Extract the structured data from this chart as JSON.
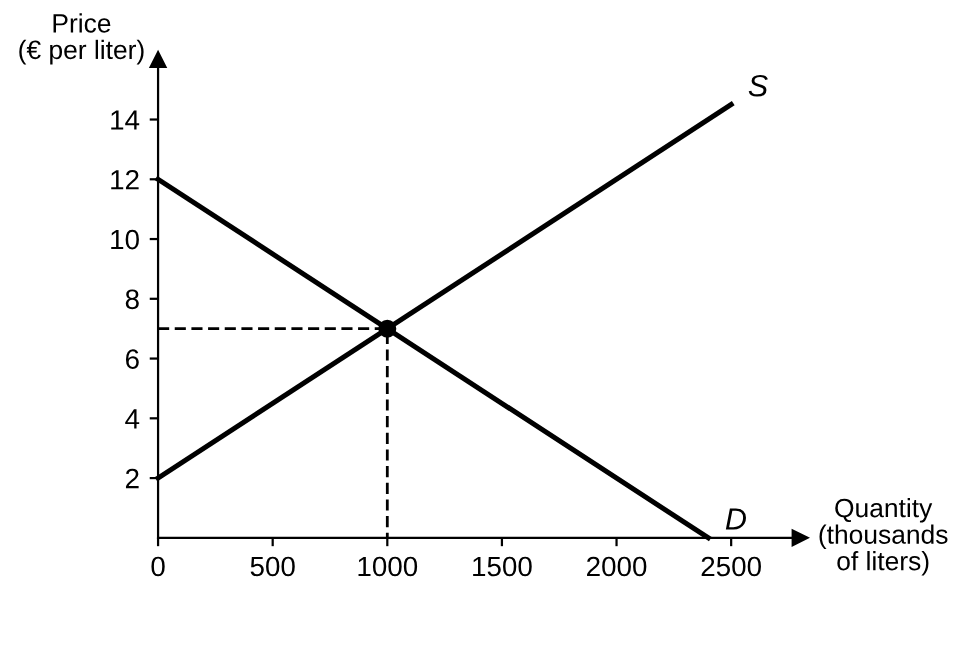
{
  "chart_data": {
    "type": "line",
    "ylabel": "Price\n(€ per liter)",
    "xlabel": "Quantity\n(thousands\nof liters)",
    "series": [
      {
        "x": [
          0,
          2500
        ],
        "values": [
          2,
          14.5
        ],
        "color": "#000000",
        "line_style": "solid"
      },
      {
        "x": [
          0,
          2400
        ],
        "values": [
          12,
          0
        ],
        "color": "#000000",
        "line_style": "solid"
      },
      {
        "x": [
          0,
          1000,
          1000
        ],
        "values": [
          7,
          7,
          0
        ],
        "color": "#000000",
        "line_style": "dashed"
      },
      {
        "type": "scatter",
        "x": [
          1000
        ],
        "values": [
          7
        ],
        "color": "#000000",
        "marker": "circle"
      }
    ],
    "annotations": [
      {
        "text": "S",
        "x": 2500,
        "y": 14.5
      },
      {
        "text": "D",
        "x": 2400,
        "y": 0
      }
    ],
    "xlim": [
      0,
      2800
    ],
    "ylim": [
      0,
      16
    ],
    "xticks": [
      0,
      500,
      1000,
      1500,
      2000,
      2500
    ],
    "yticks": [
      2,
      4,
      6,
      8,
      10,
      12,
      14
    ],
    "grid": false,
    "legend": false
  }
}
